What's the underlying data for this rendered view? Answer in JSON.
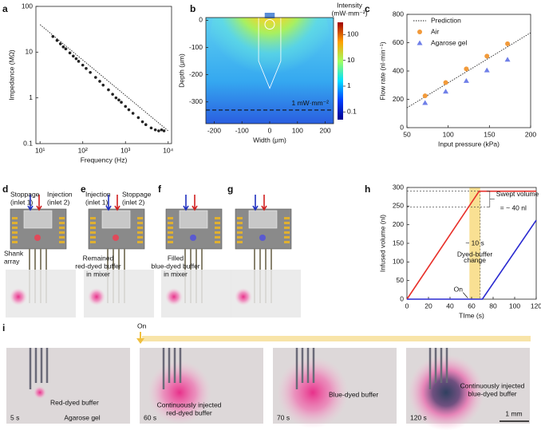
{
  "chart_data": [
    {
      "type": "scatter",
      "panel": "a",
      "xlabel": "Frequency (Hz)",
      "ylabel": "Impedance (MΩ)",
      "xlog": true,
      "ylog": true,
      "xlim": [
        8,
        12000
      ],
      "ylim": [
        0.1,
        100
      ],
      "xticks": [
        {
          "value": 10,
          "label": "10¹"
        },
        {
          "value": 100,
          "label": "10²"
        },
        {
          "value": 1000,
          "label": "10³"
        },
        {
          "value": 10000,
          "label": "10⁴"
        }
      ],
      "yticks": [
        0.1,
        1,
        10,
        100
      ],
      "series": [
        {
          "color": "#222222",
          "marker": "circle",
          "x": [
            20,
            25,
            30,
            35,
            40,
            50,
            60,
            70,
            80,
            100,
            120,
            150,
            200,
            250,
            300,
            400,
            500,
            600,
            700,
            800,
            1000,
            1200,
            1500,
            2000,
            2500,
            3000,
            4000,
            5000,
            6000,
            7000,
            8000
          ],
          "values": [
            22,
            18,
            15.2,
            13,
            11.8,
            9.6,
            8.2,
            7.2,
            6.3,
            5.2,
            4.4,
            3.6,
            2.8,
            2.3,
            1.9,
            1.5,
            1.2,
            1.0,
            0.9,
            0.8,
            0.65,
            0.55,
            0.46,
            0.37,
            0.3,
            0.26,
            0.22,
            0.2,
            0.19,
            0.2,
            0.19
          ]
        },
        {
          "color": "#222222",
          "line_style": "dotted",
          "x": [
            10,
            10000
          ],
          "values": [
            40,
            0.19
          ]
        }
      ]
    },
    {
      "type": "heatmap",
      "panel": "b",
      "xlabel": "Width (μm)",
      "ylabel": "Depth (μm)",
      "xlim": [
        -230,
        230
      ],
      "ylim": [
        -380,
        10
      ],
      "xticks": [
        -200,
        -100,
        0,
        100,
        200
      ],
      "yticks": [
        0,
        -100,
        -200,
        -300
      ],
      "colorbar_title": [
        "Intensity",
        "(mW·mm⁻²)"
      ],
      "clog": true,
      "clim": [
        0.05,
        300
      ],
      "cticks": [
        0.1,
        1,
        10,
        100
      ],
      "contour_label": "1 mW·mm⁻²",
      "contour_depth": -330
    },
    {
      "type": "scatter",
      "panel": "c",
      "xlabel": "Input pressure (kPa)",
      "ylabel": "Flow rate (nl·min⁻¹)",
      "legend": "top-left",
      "xlim": [
        50,
        200
      ],
      "ylim": [
        0,
        800
      ],
      "xticks": [
        50,
        100,
        150,
        200
      ],
      "yticks": [
        0,
        200,
        400,
        600,
        800
      ],
      "series": [
        {
          "name": "Prediction",
          "color": "#222222",
          "line_style": "dotted",
          "x": [
            50,
            200
          ],
          "values": [
            140,
            670
          ]
        },
        {
          "name": "Air",
          "color": "#f29a3a",
          "marker": "circle",
          "x": [
            72,
            97,
            122,
            147,
            172
          ],
          "values": [
            225,
            318,
            415,
            505,
            592
          ]
        },
        {
          "name": "Agarose gel",
          "color": "#6f7fe8",
          "marker": "triangle",
          "x": [
            72,
            97,
            122,
            147,
            172
          ],
          "values": [
            175,
            255,
            330,
            405,
            480
          ]
        }
      ]
    },
    {
      "type": "line",
      "panel": "h",
      "xlabel": "TIme (s)",
      "ylabel": "Infused volume (nl)",
      "xlim": [
        0,
        120
      ],
      "ylim": [
        0,
        300
      ],
      "xticks": [
        0,
        20,
        40,
        60,
        80,
        100,
        120
      ],
      "yticks": [
        0,
        50,
        100,
        150,
        200,
        250,
        300
      ],
      "highlight_x": [
        58,
        68
      ],
      "ref_y": [
        248,
        290
      ],
      "annotations": [
        "Swept volume",
        "= ~ 40 nl",
        "~ 10 s",
        "Dyed-buffer",
        "change",
        "On"
      ],
      "series": [
        {
          "color": "#e8302a",
          "x": [
            0,
            67,
            120
          ],
          "values": [
            0,
            290,
            290
          ]
        },
        {
          "color": "#2a2ad0",
          "x": [
            0,
            70,
            120
          ],
          "values": [
            0,
            0,
            212
          ]
        }
      ]
    }
  ],
  "diagrams": [
    {
      "label": "d",
      "texts": [
        "Stoppage",
        "(inlet 1)",
        "Injection",
        "(inlet 2)",
        "Shank",
        "array"
      ]
    },
    {
      "label": "e",
      "texts": [
        "Injection",
        "(inlet 1)",
        "Stoppage",
        "(inlet 2)",
        "Remained",
        "red-dyed buffer",
        "in mixer"
      ]
    },
    {
      "label": "f",
      "texts": [
        "Filled",
        "blue-dyed buffer",
        "in mixer"
      ]
    },
    {
      "label": "g",
      "texts": []
    }
  ],
  "photos": {
    "label": "i",
    "on": "On",
    "scale_bar": "1 mm",
    "frames": [
      {
        "time": "5 s",
        "notes": [
          "Red-dyed buffer",
          "Agarose gel"
        ]
      },
      {
        "time": "60 s",
        "notes": [
          "Continuously injected",
          "red-dyed buffer"
        ]
      },
      {
        "time": "70 s",
        "notes": [
          "Blue-dyed buffer"
        ]
      },
      {
        "time": "120 s",
        "notes": [
          "Continuously injected",
          "blue-dyed buffer"
        ]
      }
    ]
  }
}
